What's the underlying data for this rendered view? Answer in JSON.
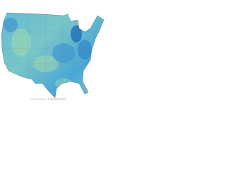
{
  "scale": {
    "label": "KILOMETERS"
  }
}
